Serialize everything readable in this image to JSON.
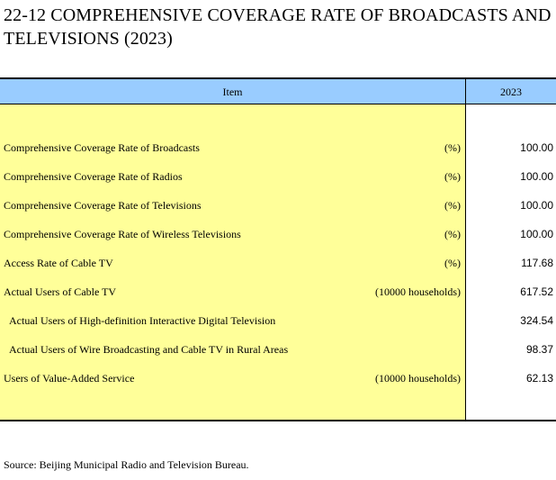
{
  "title": "22-12  COMPREHENSIVE COVERAGE RATE OF BROADCASTS AND TELEVISIONS (2023)",
  "table": {
    "header": {
      "item": "Item",
      "year": "2023"
    },
    "rows": [
      {
        "label": "Comprehensive Coverage Rate of Broadcasts",
        "unit": "(%)",
        "value": "100.00",
        "indent": false
      },
      {
        "label": "Comprehensive Coverage Rate of Radios",
        "unit": "(%)",
        "value": "100.00",
        "indent": false
      },
      {
        "label": "Comprehensive Coverage Rate of Televisions",
        "unit": "(%)",
        "value": "100.00",
        "indent": false
      },
      {
        "label": "Comprehensive Coverage Rate of Wireless Televisions",
        "unit": "(%)",
        "value": "100.00",
        "indent": false
      },
      {
        "label": "Access Rate of Cable TV",
        "unit": "(%)",
        "value": "117.68",
        "indent": false
      },
      {
        "label": "Actual Users of Cable TV",
        "unit": "(10000 households)",
        "value": "617.52",
        "indent": false
      },
      {
        "label": "Actual Users of High-definition Interactive Digital Television",
        "unit": "",
        "value": "324.54",
        "indent": true
      },
      {
        "label": "Actual Users of Wire Broadcasting and Cable TV in Rural Areas",
        "unit": "",
        "value": "98.37",
        "indent": true
      },
      {
        "label": "Users of Value-Added Service",
        "unit": "(10000 households)",
        "value": "62.13",
        "indent": false
      }
    ]
  },
  "source": "Source: Beijing Municipal Radio and Television Bureau.",
  "colors": {
    "header_bg": "#99ccff",
    "body_bg": "#ffff99"
  }
}
